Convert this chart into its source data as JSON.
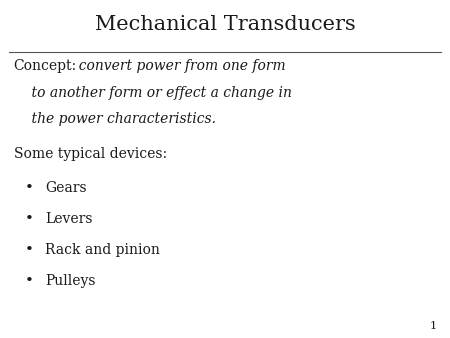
{
  "title": "Mechanical Transducers",
  "title_fontsize": 15,
  "title_color": "#1a1a1a",
  "line_color": "#555555",
  "bg_color": "#ffffff",
  "concept_label": "Concept:",
  "concept_italic_line1": "  convert power from one form",
  "concept_italic_line2": "    to another form or effect a change in",
  "concept_italic_line3": "    the power characteristics.",
  "concept_fontsize": 10,
  "devices_label": "Some typical devices:",
  "devices_fontsize": 10,
  "bullet_items": [
    "Gears",
    "Levers",
    "Rack and pinion",
    "Pulleys"
  ],
  "bullet_fontsize": 10,
  "page_number": "1",
  "page_number_fontsize": 8
}
